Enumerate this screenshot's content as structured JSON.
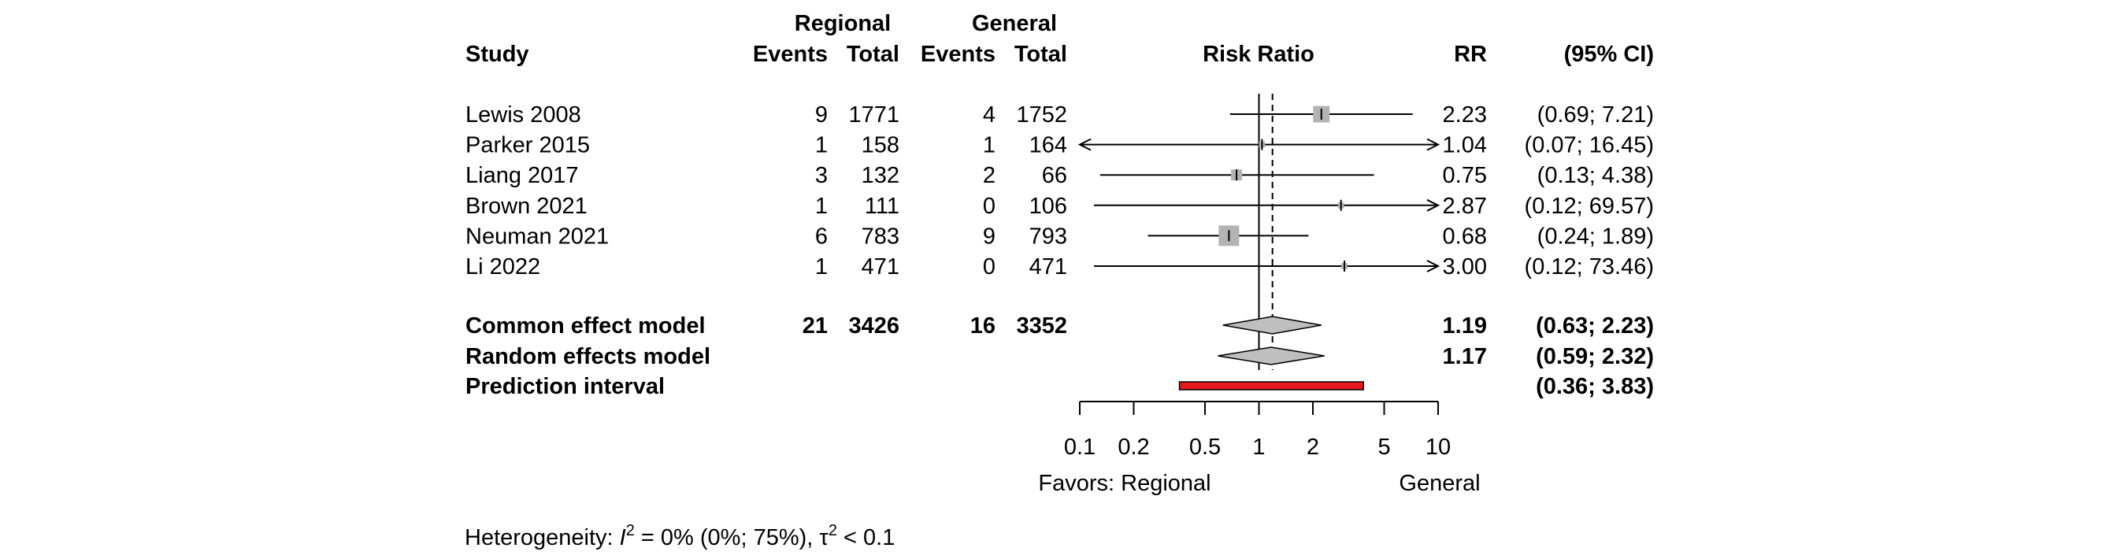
{
  "chart_data": {
    "type": "forest",
    "x_scale": "log",
    "xlim": [
      0.1,
      10
    ],
    "reference_line": 1,
    "common_effect_line": 1.19,
    "header": {
      "study": "Study",
      "group1": "Regional",
      "group2": "General",
      "events": "Events",
      "total": "Total",
      "plot_title": "Risk Ratio",
      "rr": "RR",
      "ci": "(95% CI)"
    },
    "studies": [
      {
        "name": "Lewis 2008",
        "e1": "9",
        "n1": "1771",
        "e2": "4",
        "n2": "1752",
        "rr": 2.23,
        "lo": 0.69,
        "hi": 7.21,
        "weight": 1.0,
        "rr_text": "2.23",
        "ci_text": "(0.69;  7.21)"
      },
      {
        "name": "Parker 2015",
        "e1": "1",
        "n1": "158",
        "e2": "1",
        "n2": "164",
        "rr": 1.04,
        "lo": 0.07,
        "hi": 16.45,
        "weight": 0.05,
        "rr_text": "1.04",
        "ci_text": "(0.07; 16.45)"
      },
      {
        "name": "Liang 2017",
        "e1": "3",
        "n1": "132",
        "e2": "2",
        "n2": "66",
        "rr": 0.75,
        "lo": 0.13,
        "hi": 4.38,
        "weight": 0.35,
        "rr_text": "0.75",
        "ci_text": "(0.13;  4.38)"
      },
      {
        "name": "Brown 2021",
        "e1": "1",
        "n1": "111",
        "e2": "0",
        "n2": "106",
        "rr": 2.87,
        "lo": 0.12,
        "hi": 69.57,
        "weight": 0.05,
        "rr_text": "2.87",
        "ci_text": "(0.12; 69.57)"
      },
      {
        "name": "Neuman 2021",
        "e1": "6",
        "n1": "783",
        "e2": "9",
        "n2": "793",
        "rr": 0.68,
        "lo": 0.24,
        "hi": 1.89,
        "weight": 1.7,
        "rr_text": "0.68",
        "ci_text": "(0.24;  1.89)"
      },
      {
        "name": "Li 2022",
        "e1": "1",
        "n1": "471",
        "e2": "0",
        "n2": "471",
        "rr": 3.0,
        "lo": 0.12,
        "hi": 73.46,
        "weight": 0.05,
        "rr_text": "3.00",
        "ci_text": "(0.12; 73.46)"
      }
    ],
    "summaries": [
      {
        "name": "Common effect model",
        "e1": "21",
        "n1": "3426",
        "e2": "16",
        "n2": "3352",
        "rr": 1.19,
        "lo": 0.63,
        "hi": 2.23,
        "kind": "diamond",
        "rr_text": "1.19",
        "ci_text": "(0.63;  2.23)"
      },
      {
        "name": "Random effects model",
        "e1": "",
        "n1": "",
        "e2": "",
        "n2": "",
        "rr": 1.17,
        "lo": 0.59,
        "hi": 2.32,
        "kind": "diamond",
        "rr_text": "1.17",
        "ci_text": "(0.59;  2.32)"
      },
      {
        "name": "Prediction interval",
        "e1": "",
        "n1": "",
        "e2": "",
        "n2": "",
        "lo": 0.36,
        "hi": 3.83,
        "kind": "interval",
        "rr_text": "",
        "ci_text": "(0.36;  3.83)"
      }
    ],
    "x_ticks": [
      {
        "value": 0.1,
        "label": "0.1"
      },
      {
        "value": 0.2,
        "label": "0.2"
      },
      {
        "value": 0.5,
        "label": "0.5"
      },
      {
        "value": 1,
        "label": "1"
      },
      {
        "value": 2,
        "label": "2"
      },
      {
        "value": 5,
        "label": "5"
      },
      {
        "value": 10,
        "label": "10"
      }
    ],
    "favors_left": "Favors: Regional",
    "favors_right": "General",
    "heterogeneity": {
      "prefix": "Heterogeneity: ",
      "i_symbol": "I",
      "sq": "2",
      "i2_text": " = 0% (0%; 75%), ",
      "tau_symbol": "τ",
      "tau_text": " < 0.1"
    },
    "colors": {
      "square": "#b3b3b3",
      "diamond": "#bfbfbf",
      "prediction": "#e8181c",
      "line": "#000000"
    }
  }
}
